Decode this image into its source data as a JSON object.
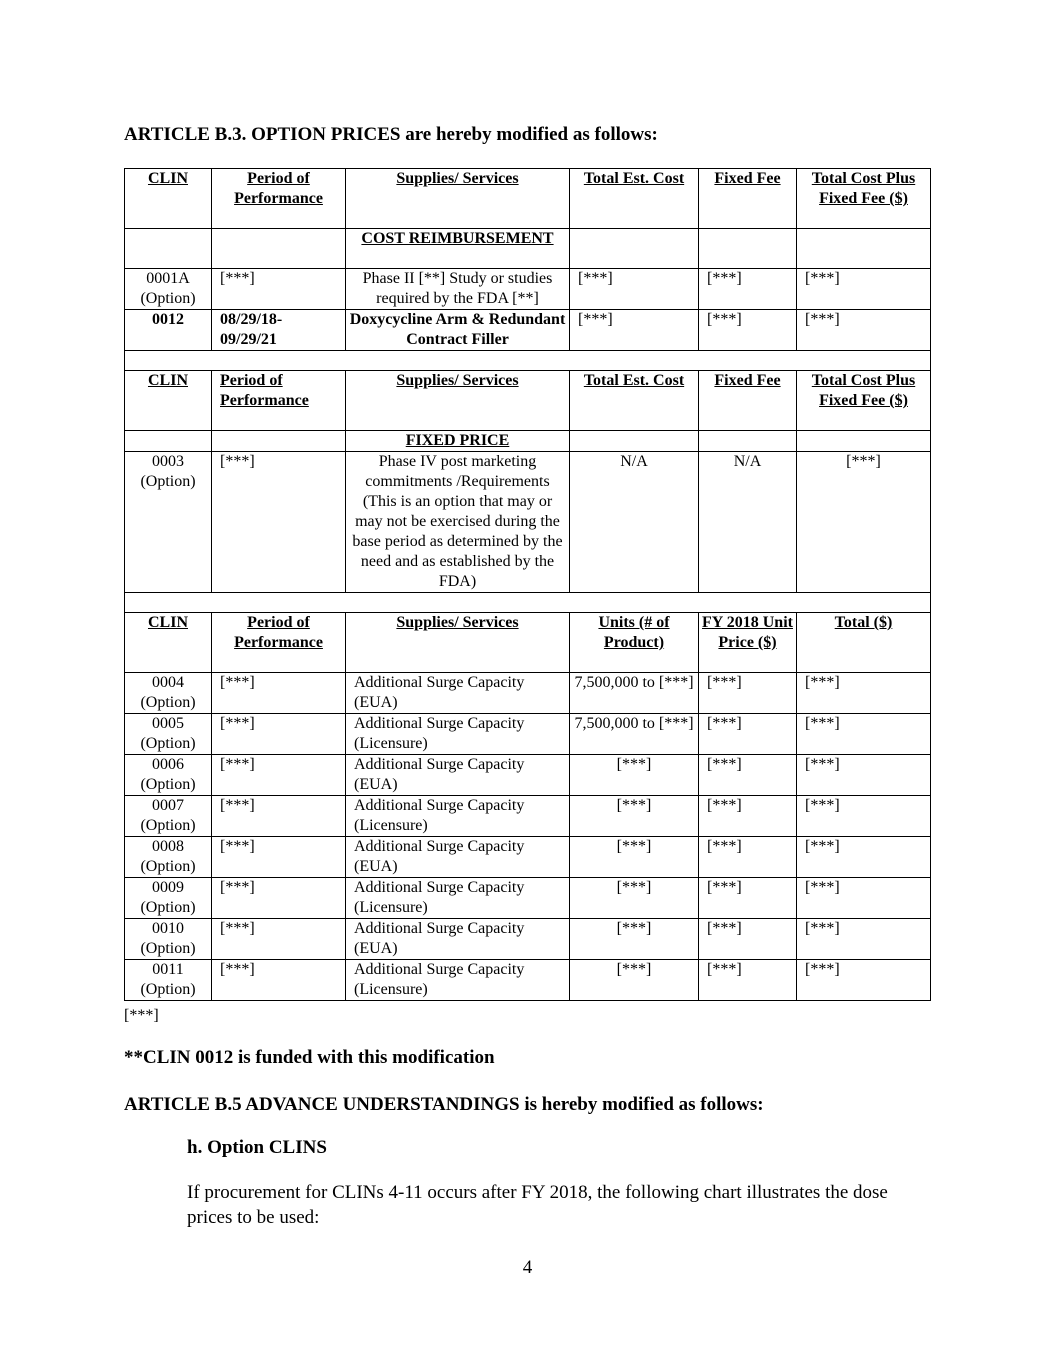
{
  "article_b3_heading": "ARTICLE B.3.  OPTION PRICES are hereby modified as follows:",
  "cost_table": {
    "headers": [
      "CLIN",
      "Period of Performance",
      "Supplies/ Services",
      "Total Est. Cost",
      "Fixed Fee",
      "Total Cost Plus Fixed Fee ($)"
    ],
    "section_label": "COST REIMBURSEMENT",
    "rows": [
      [
        "0001A (Option)",
        "[***]",
        "Phase II [**] Study or studies required by the FDA [**]",
        "[***]",
        "[***]",
        "[***]"
      ],
      [
        "0012",
        "08/29/18- 09/29/21",
        "Doxycycline Arm & Redundant Contract Filler",
        "[***]",
        "[***]",
        "[***]"
      ]
    ]
  },
  "fixed_table": {
    "headers": [
      "CLIN",
      "Period of Performance",
      "Supplies/ Services",
      "Total Est. Cost",
      "Fixed Fee",
      "Total Cost Plus Fixed Fee ($)"
    ],
    "section_label": "FIXED PRICE",
    "rows": [
      [
        "0003 (Option)",
        "[***]",
        "Phase IV post marketing commitments /Requirements (This is an option that may or may not be exercised during the base period as determined by the need and as established by the FDA)",
        "N/A",
        "N/A",
        "[***]"
      ]
    ]
  },
  "units_table": {
    "headers": [
      "CLIN",
      "Period of Performance",
      "Supplies/ Services",
      "Units (# of Product)",
      "FY 2018 Unit Price ($)",
      "Total ($)"
    ],
    "rows": [
      [
        "0004 (Option)",
        "[***]",
        "Additional Surge Capacity (EUA)",
        "7,500,000 to [***]",
        "[***]",
        "[***]"
      ],
      [
        "0005 (Option)",
        "[***]",
        "Additional Surge Capacity (Licensure)",
        "7,500,000 to [***]",
        "[***]",
        "[***]"
      ],
      [
        "0006 (Option)",
        "[***]",
        "Additional Surge Capacity (EUA)",
        "[***]",
        "[***]",
        "[***]"
      ],
      [
        "0007 (Option)",
        "[***]",
        "Additional Surge Capacity (Licensure)",
        "[***]",
        "[***]",
        "[***]"
      ],
      [
        "0008 (Option)",
        "[***]",
        "Additional Surge Capacity (EUA)",
        "[***]",
        "[***]",
        "[***]"
      ],
      [
        "0009 (Option)",
        "[***]",
        "Additional Surge Capacity (Licensure)",
        "[***]",
        "[***]",
        "[***]"
      ],
      [
        "0010 (Option)",
        "[***]",
        "Additional Surge Capacity (EUA)",
        "[***]",
        "[***]",
        "[***]"
      ],
      [
        "0011 (Option)",
        "[***]",
        "Additional Surge Capacity (Licensure)",
        "[***]",
        "[***]",
        "[***]"
      ]
    ]
  },
  "table_footnote": "[***]",
  "funding_note": "**CLIN 0012 is funded with this modification",
  "article_b5_heading": "ARTICLE B.5  ADVANCE UNDERSTANDINGS is hereby modified as follows:",
  "subsection_h": "h.  Option CLINS",
  "paragraph": "If procurement for CLINs 4-11 occurs after FY 2018, the following chart illustrates the dose prices to be used:",
  "page_number": "4"
}
